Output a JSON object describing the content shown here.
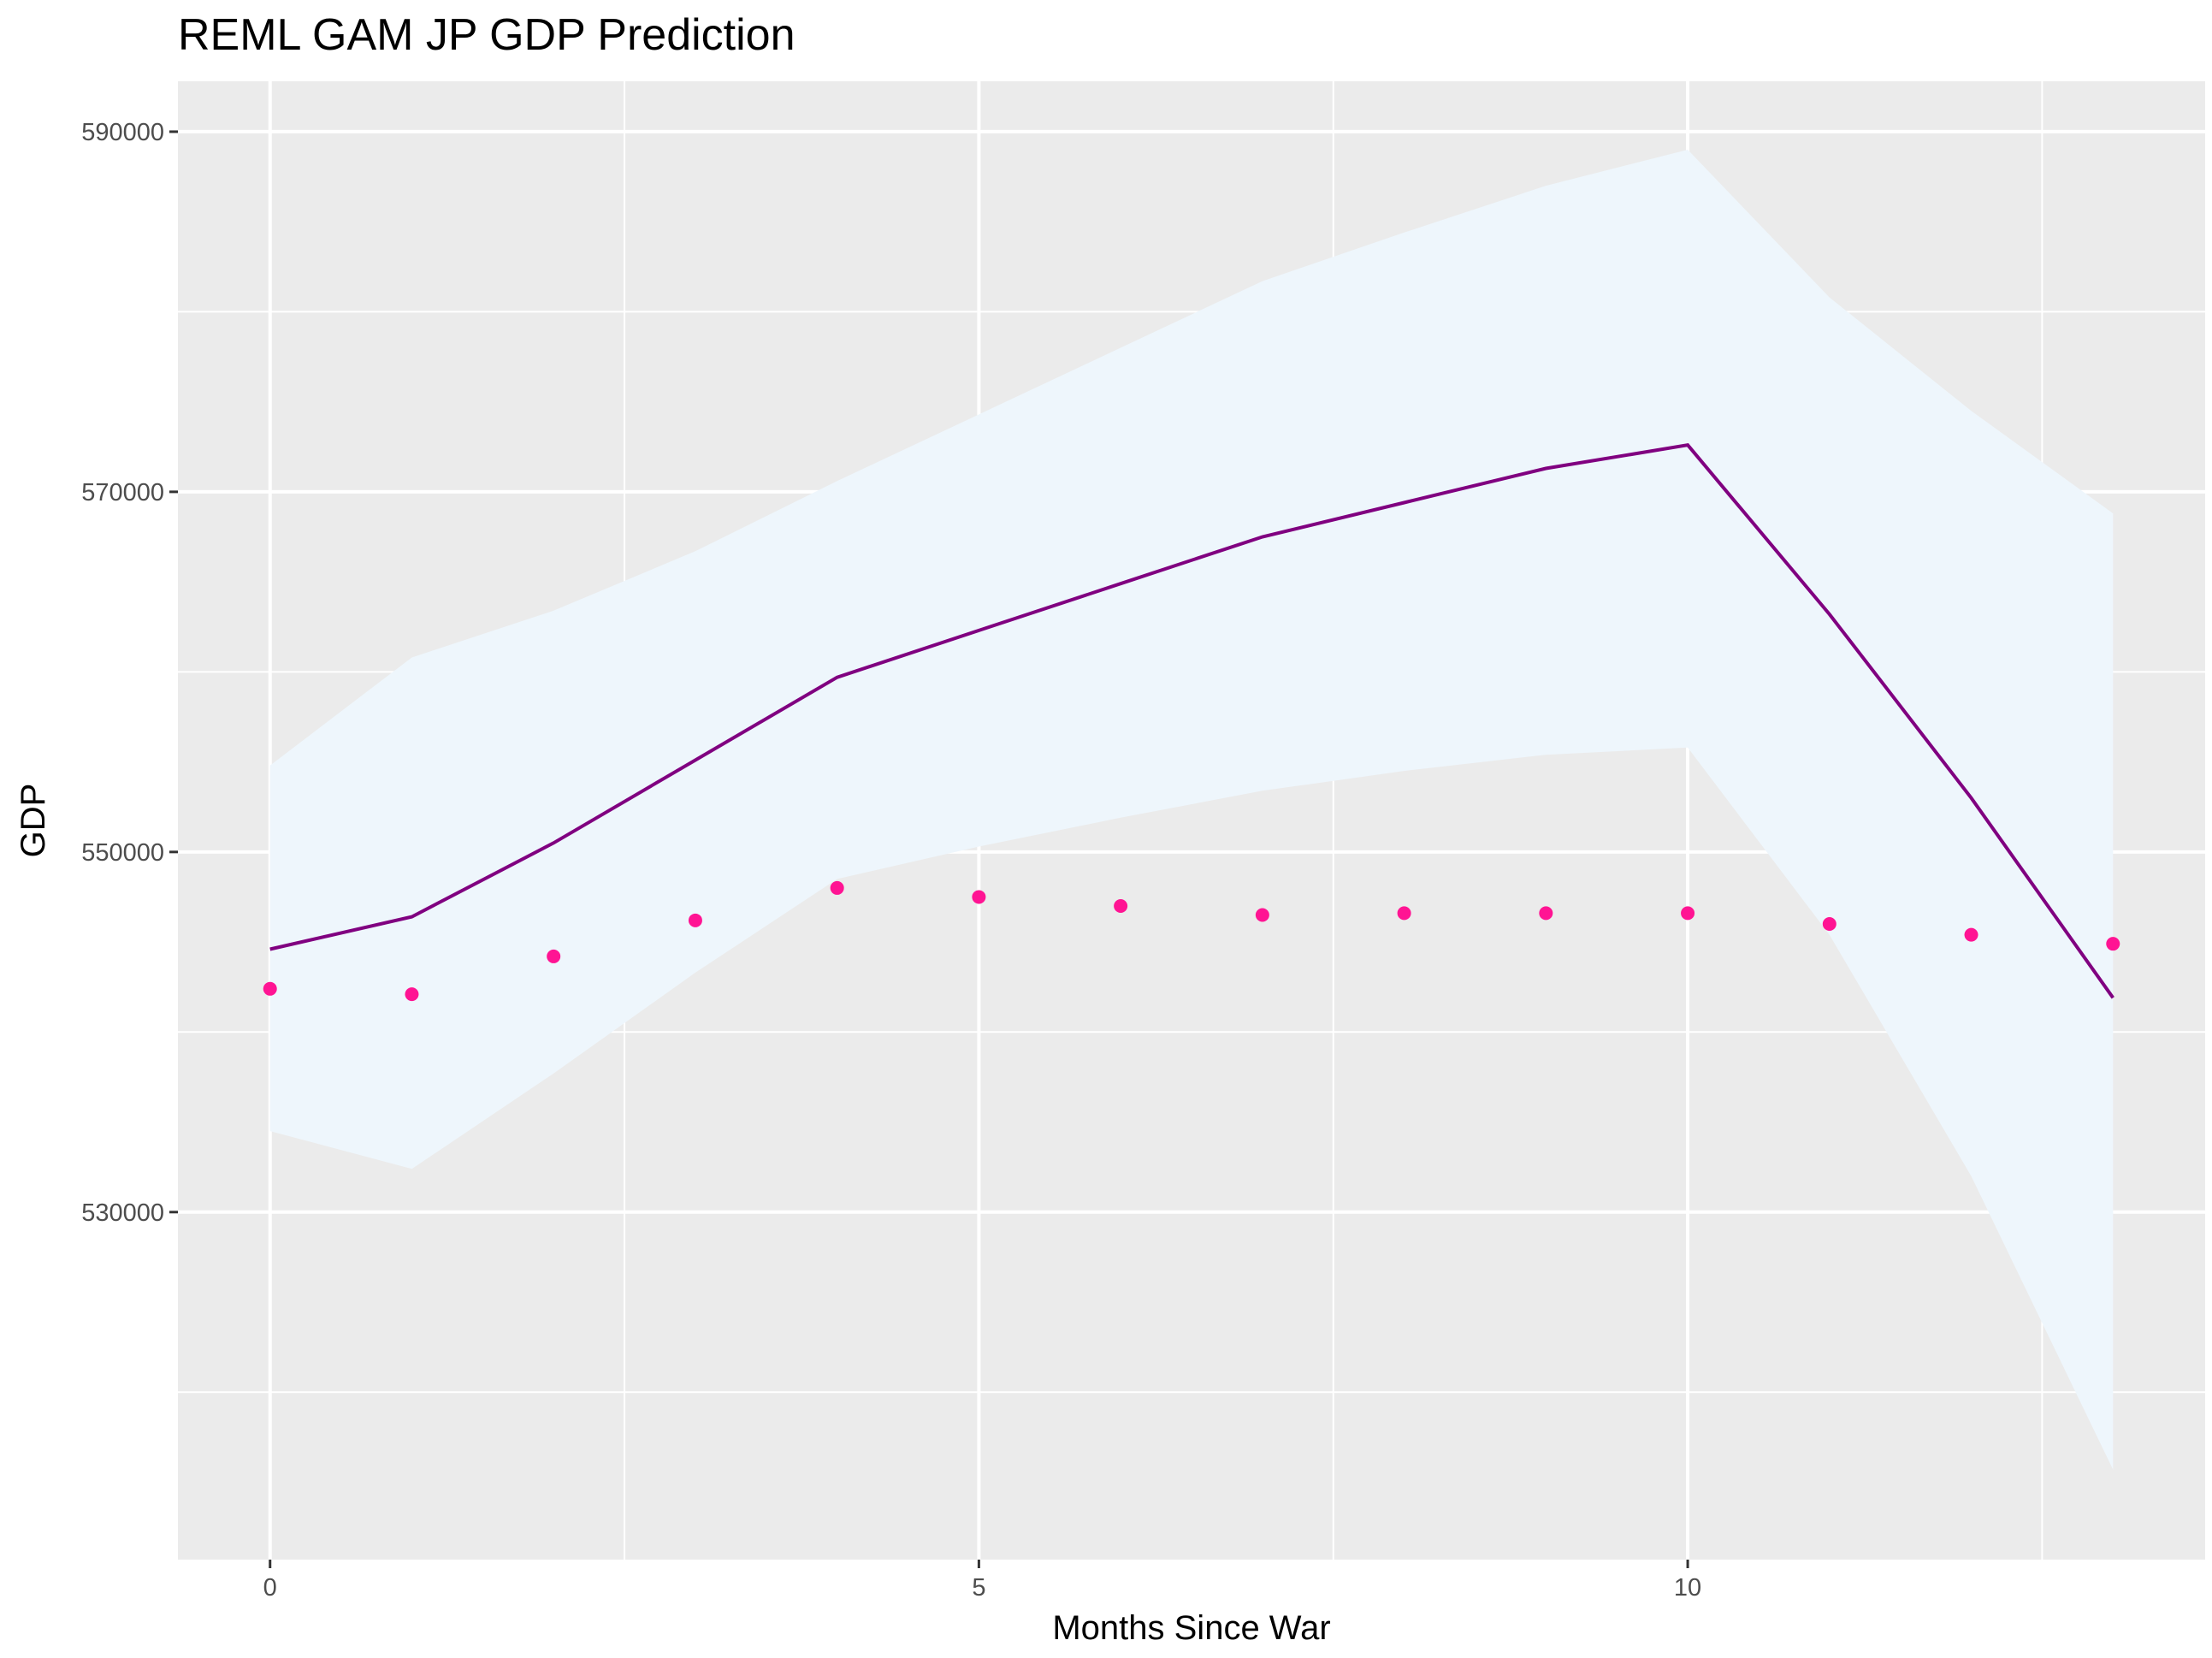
{
  "chart_data": {
    "type": "line",
    "title": "REML GAM JP GDP Prediction",
    "xlabel": "Months Since War",
    "ylabel": "GDP",
    "xlim": [
      -0.65,
      13.65
    ],
    "ylim": [
      510700,
      592800
    ],
    "x_ticks": [
      0,
      5,
      10
    ],
    "x_tick_labels": [
      "0",
      "5",
      "10"
    ],
    "y_ticks": [
      530000,
      550000,
      570000,
      590000
    ],
    "y_tick_labels": [
      "530000",
      "550000",
      "570000",
      "590000"
    ],
    "grid": true,
    "legend": "none",
    "series": [
      {
        "role": "confidence-band",
        "x": [
          0,
          1,
          2,
          3,
          4,
          5,
          6,
          7,
          8,
          9,
          10,
          11,
          12,
          13
        ],
        "lower": [
          534500,
          532400,
          537700,
          543300,
          548500,
          550300,
          551900,
          553400,
          554500,
          555400,
          555800,
          545400,
          532000,
          515700
        ],
        "upper": [
          554800,
          560800,
          563400,
          566700,
          570600,
          574300,
          578000,
          581700,
          584400,
          587000,
          589000,
          580800,
          574500,
          568800
        ],
        "color": "#eef6fc"
      },
      {
        "role": "prediction-line",
        "x": [
          0,
          1,
          2,
          3,
          4,
          5,
          6,
          7,
          8,
          9,
          10,
          11,
          12,
          13
        ],
        "y": [
          544600,
          546400,
          550500,
          555100,
          559700,
          562300,
          564900,
          567500,
          569400,
          571300,
          572600,
          563200,
          553000,
          541900
        ],
        "color": "#800080"
      },
      {
        "role": "observed-points",
        "x": [
          0,
          1,
          2,
          3,
          4,
          5,
          6,
          7,
          8,
          9,
          10,
          11,
          12,
          13
        ],
        "y": [
          542400,
          542100,
          544200,
          546200,
          548000,
          547500,
          547000,
          546500,
          546600,
          546600,
          546600,
          546000,
          545400,
          544900
        ],
        "color": "#ff1493"
      }
    ]
  },
  "colors": {
    "panel_background": "#ebebeb",
    "grid": "#ffffff",
    "tick": "#333333"
  }
}
